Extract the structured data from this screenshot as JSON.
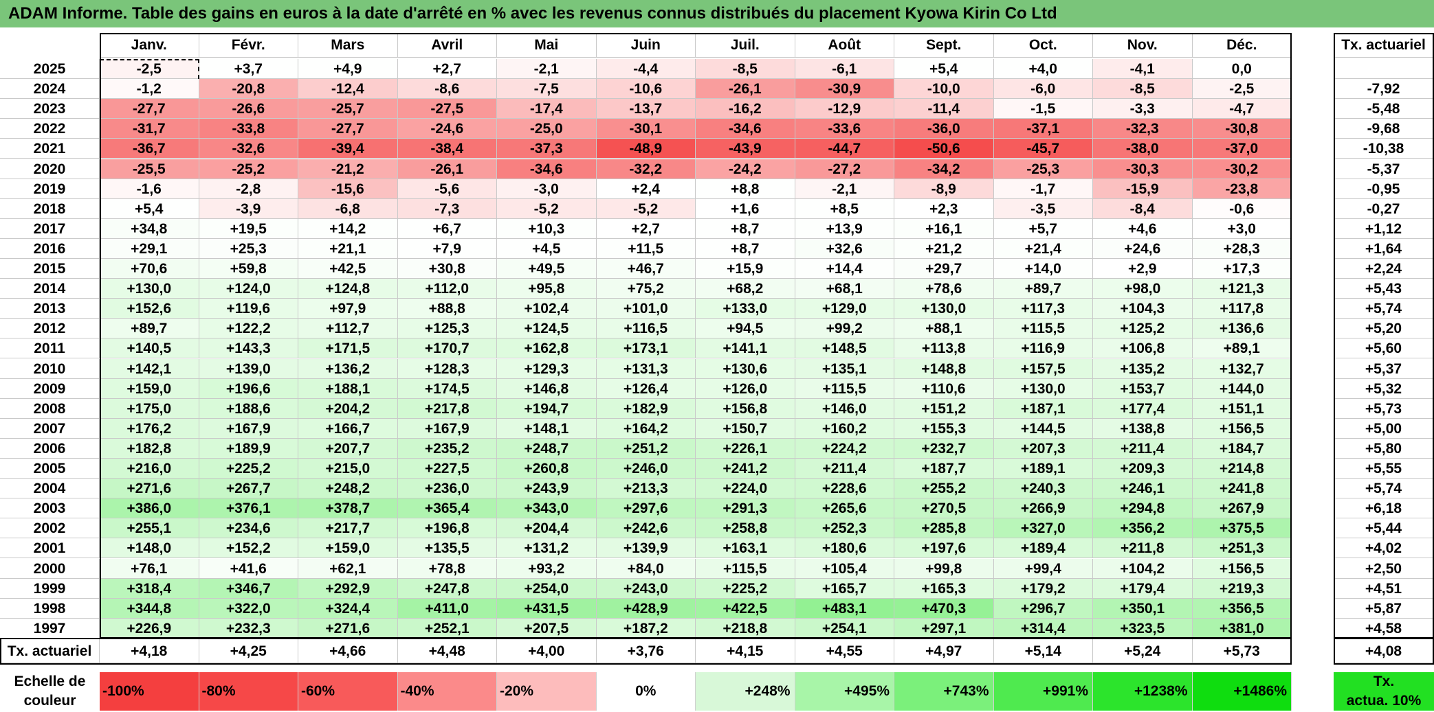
{
  "title": "ADAM Informe. Table des gains en euros à la date d'arrêté en % avec les revenus connus distribués du placement Kyowa Kirin Co Ltd",
  "months": [
    "Janv.",
    "Févr.",
    "Mars",
    "Avril",
    "Mai",
    "Juin",
    "Juil.",
    "Août",
    "Sept.",
    "Oct.",
    "Nov.",
    "Déc."
  ],
  "tx_header": "Tx. actuariel",
  "rows": [
    {
      "year": "2025",
      "values": [
        "-2,5",
        "+3,7",
        "+4,9",
        "+2,7",
        "-2,1",
        "-4,4",
        "-8,5",
        "-6,1",
        "+5,4",
        "+4,0",
        "-4,1",
        "0,0"
      ],
      "tx": ""
    },
    {
      "year": "2024",
      "values": [
        "-1,2",
        "-20,8",
        "-12,4",
        "-8,6",
        "-7,5",
        "-10,6",
        "-26,1",
        "-30,9",
        "-10,0",
        "-6,0",
        "-8,5",
        "-2,5"
      ],
      "tx": "-7,92"
    },
    {
      "year": "2023",
      "values": [
        "-27,7",
        "-26,6",
        "-25,7",
        "-27,5",
        "-17,4",
        "-13,7",
        "-16,2",
        "-12,9",
        "-11,4",
        "-1,5",
        "-3,3",
        "-4,7"
      ],
      "tx": "-5,48"
    },
    {
      "year": "2022",
      "values": [
        "-31,7",
        "-33,8",
        "-27,7",
        "-24,6",
        "-25,0",
        "-30,1",
        "-34,6",
        "-33,6",
        "-36,0",
        "-37,1",
        "-32,3",
        "-30,8"
      ],
      "tx": "-9,68"
    },
    {
      "year": "2021",
      "values": [
        "-36,7",
        "-32,6",
        "-39,4",
        "-38,4",
        "-37,3",
        "-48,9",
        "-43,9",
        "-44,7",
        "-50,6",
        "-45,7",
        "-38,0",
        "-37,0"
      ],
      "tx": "-10,38"
    },
    {
      "year": "2020",
      "values": [
        "-25,5",
        "-25,2",
        "-21,2",
        "-26,1",
        "-34,6",
        "-32,2",
        "-24,2",
        "-27,2",
        "-34,2",
        "-25,3",
        "-30,3",
        "-30,2"
      ],
      "tx": "-5,37"
    },
    {
      "year": "2019",
      "values": [
        "-1,6",
        "-2,8",
        "-15,6",
        "-5,6",
        "-3,0",
        "+2,4",
        "+8,8",
        "-2,1",
        "-8,9",
        "-1,7",
        "-15,9",
        "-23,8"
      ],
      "tx": "-0,95"
    },
    {
      "year": "2018",
      "values": [
        "+5,4",
        "-3,9",
        "-6,8",
        "-7,3",
        "-5,2",
        "-5,2",
        "+1,6",
        "+8,5",
        "+2,3",
        "-3,5",
        "-8,4",
        "-0,6"
      ],
      "tx": "-0,27"
    },
    {
      "year": "2017",
      "values": [
        "+34,8",
        "+19,5",
        "+14,2",
        "+6,7",
        "+10,3",
        "+2,7",
        "+8,7",
        "+13,9",
        "+16,1",
        "+5,7",
        "+4,6",
        "+3,0"
      ],
      "tx": "+1,12"
    },
    {
      "year": "2016",
      "values": [
        "+29,1",
        "+25,3",
        "+21,1",
        "+7,9",
        "+4,5",
        "+11,5",
        "+8,7",
        "+32,6",
        "+21,2",
        "+21,4",
        "+24,6",
        "+28,3"
      ],
      "tx": "+1,64"
    },
    {
      "year": "2015",
      "values": [
        "+70,6",
        "+59,8",
        "+42,5",
        "+30,8",
        "+49,5",
        "+46,7",
        "+15,9",
        "+14,4",
        "+29,7",
        "+14,0",
        "+2,9",
        "+17,3"
      ],
      "tx": "+2,24"
    },
    {
      "year": "2014",
      "values": [
        "+130,0",
        "+124,0",
        "+124,8",
        "+112,0",
        "+95,8",
        "+75,2",
        "+68,2",
        "+68,1",
        "+78,6",
        "+89,7",
        "+98,0",
        "+121,3"
      ],
      "tx": "+5,43"
    },
    {
      "year": "2013",
      "values": [
        "+152,6",
        "+119,6",
        "+97,9",
        "+88,8",
        "+102,4",
        "+101,0",
        "+133,0",
        "+129,0",
        "+130,0",
        "+117,3",
        "+104,3",
        "+117,8"
      ],
      "tx": "+5,74"
    },
    {
      "year": "2012",
      "values": [
        "+89,7",
        "+122,2",
        "+112,7",
        "+125,3",
        "+124,5",
        "+116,5",
        "+94,5",
        "+99,2",
        "+88,1",
        "+115,5",
        "+125,2",
        "+136,6"
      ],
      "tx": "+5,20"
    },
    {
      "year": "2011",
      "values": [
        "+140,5",
        "+143,3",
        "+171,5",
        "+170,7",
        "+162,8",
        "+173,1",
        "+141,1",
        "+148,5",
        "+113,8",
        "+116,9",
        "+106,8",
        "+89,1"
      ],
      "tx": "+5,60"
    },
    {
      "year": "2010",
      "values": [
        "+142,1",
        "+139,0",
        "+136,2",
        "+128,3",
        "+129,3",
        "+131,3",
        "+130,6",
        "+135,1",
        "+148,8",
        "+157,5",
        "+135,2",
        "+132,7"
      ],
      "tx": "+5,37"
    },
    {
      "year": "2009",
      "values": [
        "+159,0",
        "+196,6",
        "+188,1",
        "+174,5",
        "+146,8",
        "+126,4",
        "+126,0",
        "+115,5",
        "+110,6",
        "+130,0",
        "+153,7",
        "+144,0"
      ],
      "tx": "+5,32"
    },
    {
      "year": "2008",
      "values": [
        "+175,0",
        "+188,6",
        "+204,2",
        "+217,8",
        "+194,7",
        "+182,9",
        "+156,8",
        "+146,0",
        "+151,2",
        "+187,1",
        "+177,4",
        "+151,1"
      ],
      "tx": "+5,73"
    },
    {
      "year": "2007",
      "values": [
        "+176,2",
        "+167,9",
        "+166,7",
        "+167,9",
        "+148,1",
        "+164,2",
        "+150,7",
        "+160,2",
        "+155,3",
        "+144,5",
        "+138,8",
        "+156,5"
      ],
      "tx": "+5,00"
    },
    {
      "year": "2006",
      "values": [
        "+182,8",
        "+189,9",
        "+207,7",
        "+235,2",
        "+248,7",
        "+251,2",
        "+226,1",
        "+224,2",
        "+232,7",
        "+207,3",
        "+211,4",
        "+184,7"
      ],
      "tx": "+5,80"
    },
    {
      "year": "2005",
      "values": [
        "+216,0",
        "+225,2",
        "+215,0",
        "+227,5",
        "+260,8",
        "+246,0",
        "+241,2",
        "+211,4",
        "+187,7",
        "+189,1",
        "+209,3",
        "+214,8"
      ],
      "tx": "+5,55"
    },
    {
      "year": "2004",
      "values": [
        "+271,6",
        "+267,7",
        "+248,2",
        "+236,0",
        "+243,9",
        "+213,3",
        "+224,0",
        "+228,6",
        "+255,2",
        "+240,3",
        "+246,1",
        "+241,8"
      ],
      "tx": "+5,74"
    },
    {
      "year": "2003",
      "values": [
        "+386,0",
        "+376,1",
        "+378,7",
        "+365,4",
        "+343,0",
        "+297,6",
        "+291,3",
        "+265,6",
        "+270,5",
        "+266,9",
        "+294,8",
        "+267,9"
      ],
      "tx": "+6,18"
    },
    {
      "year": "2002",
      "values": [
        "+255,1",
        "+234,6",
        "+217,7",
        "+196,8",
        "+204,4",
        "+242,6",
        "+258,8",
        "+252,3",
        "+285,8",
        "+327,0",
        "+356,2",
        "+375,5"
      ],
      "tx": "+5,44"
    },
    {
      "year": "2001",
      "values": [
        "+148,0",
        "+152,2",
        "+159,0",
        "+135,5",
        "+131,2",
        "+139,9",
        "+163,1",
        "+180,6",
        "+197,6",
        "+189,4",
        "+211,8",
        "+251,3"
      ],
      "tx": "+4,02"
    },
    {
      "year": "2000",
      "values": [
        "+76,1",
        "+41,6",
        "+62,1",
        "+78,8",
        "+93,2",
        "+84,0",
        "+115,5",
        "+105,4",
        "+99,8",
        "+99,4",
        "+104,2",
        "+156,5"
      ],
      "tx": "+2,50"
    },
    {
      "year": "1999",
      "values": [
        "+318,4",
        "+346,7",
        "+292,9",
        "+247,8",
        "+254,0",
        "+243,0",
        "+225,2",
        "+165,7",
        "+165,3",
        "+179,2",
        "+179,4",
        "+219,3"
      ],
      "tx": "+4,51"
    },
    {
      "year": "1998",
      "values": [
        "+344,8",
        "+322,0",
        "+324,4",
        "+411,0",
        "+431,5",
        "+428,9",
        "+422,5",
        "+483,1",
        "+470,3",
        "+296,7",
        "+350,1",
        "+356,5"
      ],
      "tx": "+5,87"
    },
    {
      "year": "1997",
      "values": [
        "+226,9",
        "+232,3",
        "+271,6",
        "+252,1",
        "+207,5",
        "+187,2",
        "+218,8",
        "+254,1",
        "+297,1",
        "+314,4",
        "+323,5",
        "+381,0"
      ],
      "tx": "+4,58"
    }
  ],
  "summary": {
    "label": "Tx. actuariel",
    "values": [
      "+4,18",
      "+4,25",
      "+4,66",
      "+4,48",
      "+4,00",
      "+3,76",
      "+4,15",
      "+4,55",
      "+4,97",
      "+5,14",
      "+5,24",
      "+5,73"
    ],
    "total": "+4,08"
  },
  "scale": {
    "title_line1": "Echelle de",
    "title_line2": "couleur",
    "items": [
      {
        "label": "-100%",
        "color": "#f43f3f",
        "align": "left"
      },
      {
        "label": "-80%",
        "color": "#f64848",
        "align": "left"
      },
      {
        "label": "-60%",
        "color": "#f85a5a",
        "align": "left"
      },
      {
        "label": "-40%",
        "color": "#fb8a8a",
        "align": "left"
      },
      {
        "label": "-20%",
        "color": "#fdbcbc",
        "align": "left"
      },
      {
        "label": "0%",
        "color": "#ffffff",
        "align": "center"
      },
      {
        "label": "+248%",
        "color": "#d8f8d8",
        "align": "right"
      },
      {
        "label": "+495%",
        "color": "#a8f5a8",
        "align": "right"
      },
      {
        "label": "+743%",
        "color": "#7bf07b",
        "align": "right"
      },
      {
        "label": "+991%",
        "color": "#4fea4f",
        "align": "right"
      },
      {
        "label": "+1238%",
        "color": "#2ce42c",
        "align": "right"
      },
      {
        "label": "+1486%",
        "color": "#0fdd0f",
        "align": "right"
      }
    ],
    "tx_label_line1": "Tx.",
    "tx_label_line2": "actua. 10%",
    "tx_color": "#22e022"
  },
  "colors": {
    "title_bg": "#7ac57a",
    "neg_max": "#f43f3f",
    "pos_max": "#0fdd0f"
  }
}
